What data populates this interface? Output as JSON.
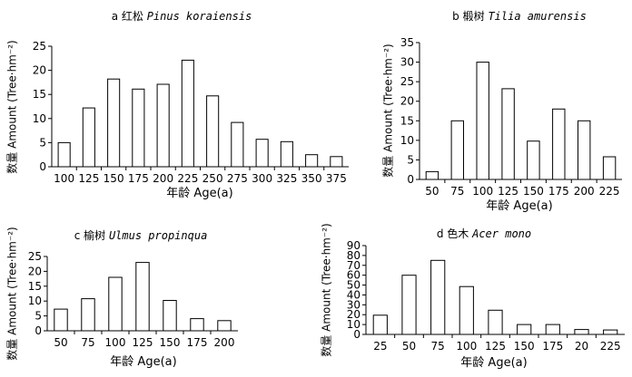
{
  "chart_data": [
    {
      "type": "bar",
      "panel_letter": "a",
      "title_cn": "红松",
      "title_latin": "Pinus koraiensis",
      "categories": [
        "100",
        "125",
        "150",
        "175",
        "200",
        "225",
        "250",
        "275",
        "300",
        "325",
        "350",
        "375"
      ],
      "values": [
        5,
        12.2,
        18.2,
        16.1,
        17.1,
        22.1,
        14.7,
        9.2,
        5.7,
        5.2,
        2.5,
        2.1
      ],
      "ylim": [
        0,
        25
      ],
      "yticks": [
        "0",
        "5",
        "10",
        "15",
        "20",
        "25"
      ],
      "xlabel": "年龄 Age(a)",
      "ylabel": "数量 Amount (Tree·hm⁻²)",
      "grid": false,
      "bar_color": "#ffffff",
      "edge_color": "#000000"
    },
    {
      "type": "bar",
      "panel_letter": "b",
      "title_cn": "椴树",
      "title_latin": "Tilia amurensis",
      "categories": [
        "50",
        "75",
        "100",
        "125",
        "150",
        "175",
        "200",
        "225"
      ],
      "values": [
        2,
        15,
        30,
        23.2,
        9.8,
        18,
        15,
        5.8
      ],
      "ylim": [
        0,
        35
      ],
      "yticks": [
        "0",
        "5",
        "10",
        "15",
        "20",
        "25",
        "30",
        "35"
      ],
      "xlabel": "年龄 Age(a)",
      "ylabel": "数量 Amount (Tree·hm⁻²)",
      "grid": false,
      "bar_color": "#ffffff",
      "edge_color": "#000000"
    },
    {
      "type": "bar",
      "panel_letter": "c",
      "title_cn": "榆树",
      "title_latin": "Ulmus propinqua",
      "categories": [
        "50",
        "75",
        "100",
        "125",
        "150",
        "175",
        "200"
      ],
      "values": [
        7.3,
        10.8,
        18,
        23,
        10.2,
        4.1,
        3.4
      ],
      "ylim": [
        0,
        25
      ],
      "yticks": [
        "0",
        "5",
        "10",
        "15",
        "20",
        "25"
      ],
      "xlabel": "年龄 Age(a)",
      "ylabel": "数量 Amount (Tree·hm⁻²)",
      "grid": false,
      "bar_color": "#ffffff",
      "edge_color": "#000000"
    },
    {
      "type": "bar",
      "panel_letter": "d",
      "title_cn": "色木",
      "title_latin": "Acer mono",
      "categories": [
        "25",
        "50",
        "75",
        "100",
        "125",
        "150",
        "175",
        "20",
        "225"
      ],
      "values": [
        19.5,
        60,
        75,
        48.5,
        24.5,
        10,
        10,
        5,
        4.5
      ],
      "ylim": [
        0,
        90
      ],
      "yticks": [
        "0",
        "10",
        "20",
        "30",
        "40",
        "50",
        "60",
        "70",
        "80",
        "90"
      ],
      "xlabel": "年龄 Age(a)",
      "ylabel": "数量 Amount (Tree·hm⁻²)",
      "grid": false,
      "bar_color": "#ffffff",
      "edge_color": "#000000"
    }
  ]
}
